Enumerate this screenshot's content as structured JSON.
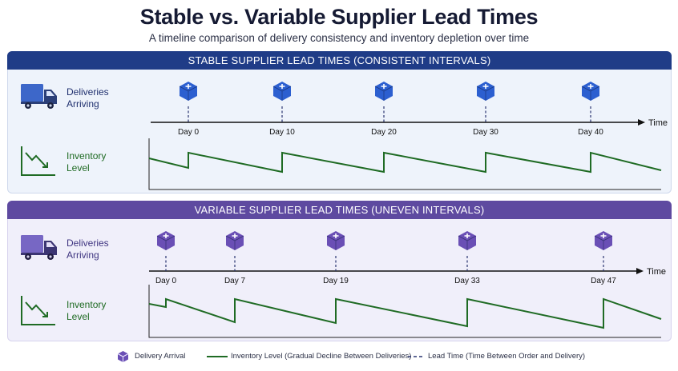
{
  "title": "Stable vs. Variable Supplier Lead Times",
  "subtitle": "A timeline comparison of delivery consistency and inventory depletion over time",
  "panels": {
    "stable": {
      "header": "STABLE SUPPLIER LEAD TIMES (CONSISTENT INTERVALS)",
      "deliveries_label_1": "Deliveries",
      "deliveries_label_2": "Arriving",
      "inventory_label_1": "Inventory",
      "inventory_label_2": "Level",
      "axis_label": "Time",
      "delivery_days": [
        0,
        10,
        20,
        30,
        40
      ],
      "tick_labels": [
        "Day 0",
        "Day 10",
        "Day 20",
        "Day 30",
        "Day 40"
      ]
    },
    "variable": {
      "header": "VARIABLE SUPPLIER LEAD TIMES (UNEVEN INTERVALS)",
      "deliveries_label_1": "Deliveries",
      "deliveries_label_2": "Arriving",
      "inventory_label_1": "Inventory",
      "inventory_label_2": "Level",
      "axis_label": "Time",
      "delivery_days": [
        0,
        7,
        19,
        33,
        47
      ],
      "tick_labels": [
        "Day 0",
        "Day 7",
        "Day 19",
        "Day 33",
        "Day 47"
      ]
    }
  },
  "legend": {
    "delivery": "Delivery Arrival",
    "inventory": "Inventory Level (Gradual Decline Between Deliveries)",
    "lead_time": "Lead Time (Time Between Order and Delivery)"
  },
  "colors": {
    "stable_header": "#1f3c87",
    "variable_header": "#5e4aa0",
    "stable_box": "#2c5fd0",
    "variable_box": "#6a4fb5",
    "inventory_line": "#1f6b24",
    "stable_truck": "#3d67c9",
    "variable_truck": "#7767c4"
  },
  "icons": [
    "truck-icon",
    "trend-down-icon",
    "package-icon"
  ]
}
